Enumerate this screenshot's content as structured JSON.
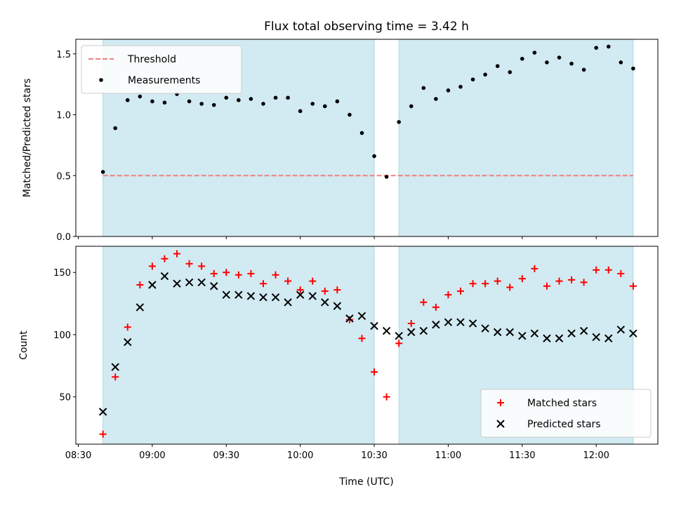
{
  "chart_data": {
    "type": "scatter",
    "title": "Flux total observing time = 3.42 h",
    "xlabel": "Time (UTC)",
    "x_ticks": [
      "08:30",
      "09:00",
      "09:30",
      "10:00",
      "10:30",
      "11:00",
      "11:30",
      "12:00"
    ],
    "x_tick_minutes": [
      510,
      540,
      570,
      600,
      630,
      660,
      690,
      720
    ],
    "xlim_minutes": [
      509,
      745
    ],
    "observing_windows_minutes": [
      [
        520,
        630
      ],
      [
        640,
        735
      ]
    ],
    "window_color": "#add8e6",
    "panels": [
      {
        "ylabel": "Matched/Predicted stars",
        "ylim": [
          0,
          1.62
        ],
        "y_ticks": [
          "0.0",
          "0.5",
          "1.0",
          "1.5"
        ],
        "y_tick_values": [
          0.0,
          0.5,
          1.0,
          1.5
        ],
        "legend_position": "upper-left",
        "series": [
          {
            "name": "Threshold",
            "kind": "hline",
            "y": 0.5,
            "x_range": [
              520,
              735
            ],
            "color": "#f08080",
            "style": "dashed"
          },
          {
            "name": "Measurements",
            "kind": "dot",
            "color": "#000000",
            "x": [
              520,
              525,
              530,
              535,
              540,
              545,
              550,
              555,
              560,
              565,
              570,
              575,
              580,
              585,
              590,
              595,
              600,
              605,
              610,
              615,
              620,
              625,
              630,
              635,
              640,
              645,
              650,
              655,
              660,
              665,
              670,
              675,
              680,
              685,
              690,
              695,
              700,
              705,
              710,
              715,
              720,
              725,
              730,
              735
            ],
            "y": [
              0.53,
              0.89,
              1.12,
              1.15,
              1.11,
              1.1,
              1.17,
              1.11,
              1.09,
              1.08,
              1.14,
              1.12,
              1.13,
              1.09,
              1.14,
              1.14,
              1.03,
              1.09,
              1.07,
              1.11,
              1.0,
              0.85,
              0.66,
              0.49,
              0.94,
              1.07,
              1.22,
              1.13,
              1.2,
              1.23,
              1.29,
              1.33,
              1.4,
              1.35,
              1.46,
              1.51,
              1.43,
              1.47,
              1.42,
              1.37,
              1.55,
              1.56,
              1.43,
              1.38
            ]
          }
        ]
      },
      {
        "ylabel": "Count",
        "ylim": [
          12,
          171
        ],
        "y_ticks": [
          "50",
          "100",
          "150"
        ],
        "y_tick_values": [
          50,
          100,
          150
        ],
        "legend_position": "lower-right",
        "series": [
          {
            "name": "Matched stars",
            "kind": "plus",
            "color": "#ff0000",
            "x": [
              520,
              525,
              530,
              535,
              540,
              545,
              550,
              555,
              560,
              565,
              570,
              575,
              580,
              585,
              590,
              595,
              600,
              605,
              610,
              615,
              620,
              625,
              630,
              635,
              640,
              645,
              650,
              655,
              660,
              665,
              670,
              675,
              680,
              685,
              690,
              695,
              700,
              705,
              710,
              715,
              720,
              725,
              730,
              735
            ],
            "y": [
              20,
              66,
              106,
              140,
              155,
              161,
              165,
              157,
              155,
              149,
              150,
              148,
              149,
              141,
              148,
              143,
              136,
              143,
              135,
              136,
              112,
              97,
              70,
              50,
              93,
              109,
              126,
              122,
              132,
              135,
              141,
              141,
              143,
              138,
              145,
              153,
              139,
              143,
              144,
              142,
              152,
              152,
              149,
              139
            ]
          },
          {
            "name": "Predicted stars",
            "kind": "cross",
            "color": "#000000",
            "x": [
              520,
              525,
              530,
              535,
              540,
              545,
              550,
              555,
              560,
              565,
              570,
              575,
              580,
              585,
              590,
              595,
              600,
              605,
              610,
              615,
              620,
              625,
              630,
              635,
              640,
              645,
              650,
              655,
              660,
              665,
              670,
              675,
              680,
              685,
              690,
              695,
              700,
              705,
              710,
              715,
              720,
              725,
              730,
              735
            ],
            "y": [
              38,
              74,
              94,
              122,
              140,
              147,
              141,
              142,
              142,
              139,
              132,
              132,
              131,
              130,
              130,
              126,
              132,
              131,
              126,
              123,
              113,
              115,
              107,
              103,
              99,
              102,
              103,
              108,
              110,
              110,
              109,
              105,
              102,
              102,
              99,
              101,
              97,
              97,
              101,
              103,
              98,
              97,
              104,
              101
            ]
          }
        ]
      }
    ]
  }
}
